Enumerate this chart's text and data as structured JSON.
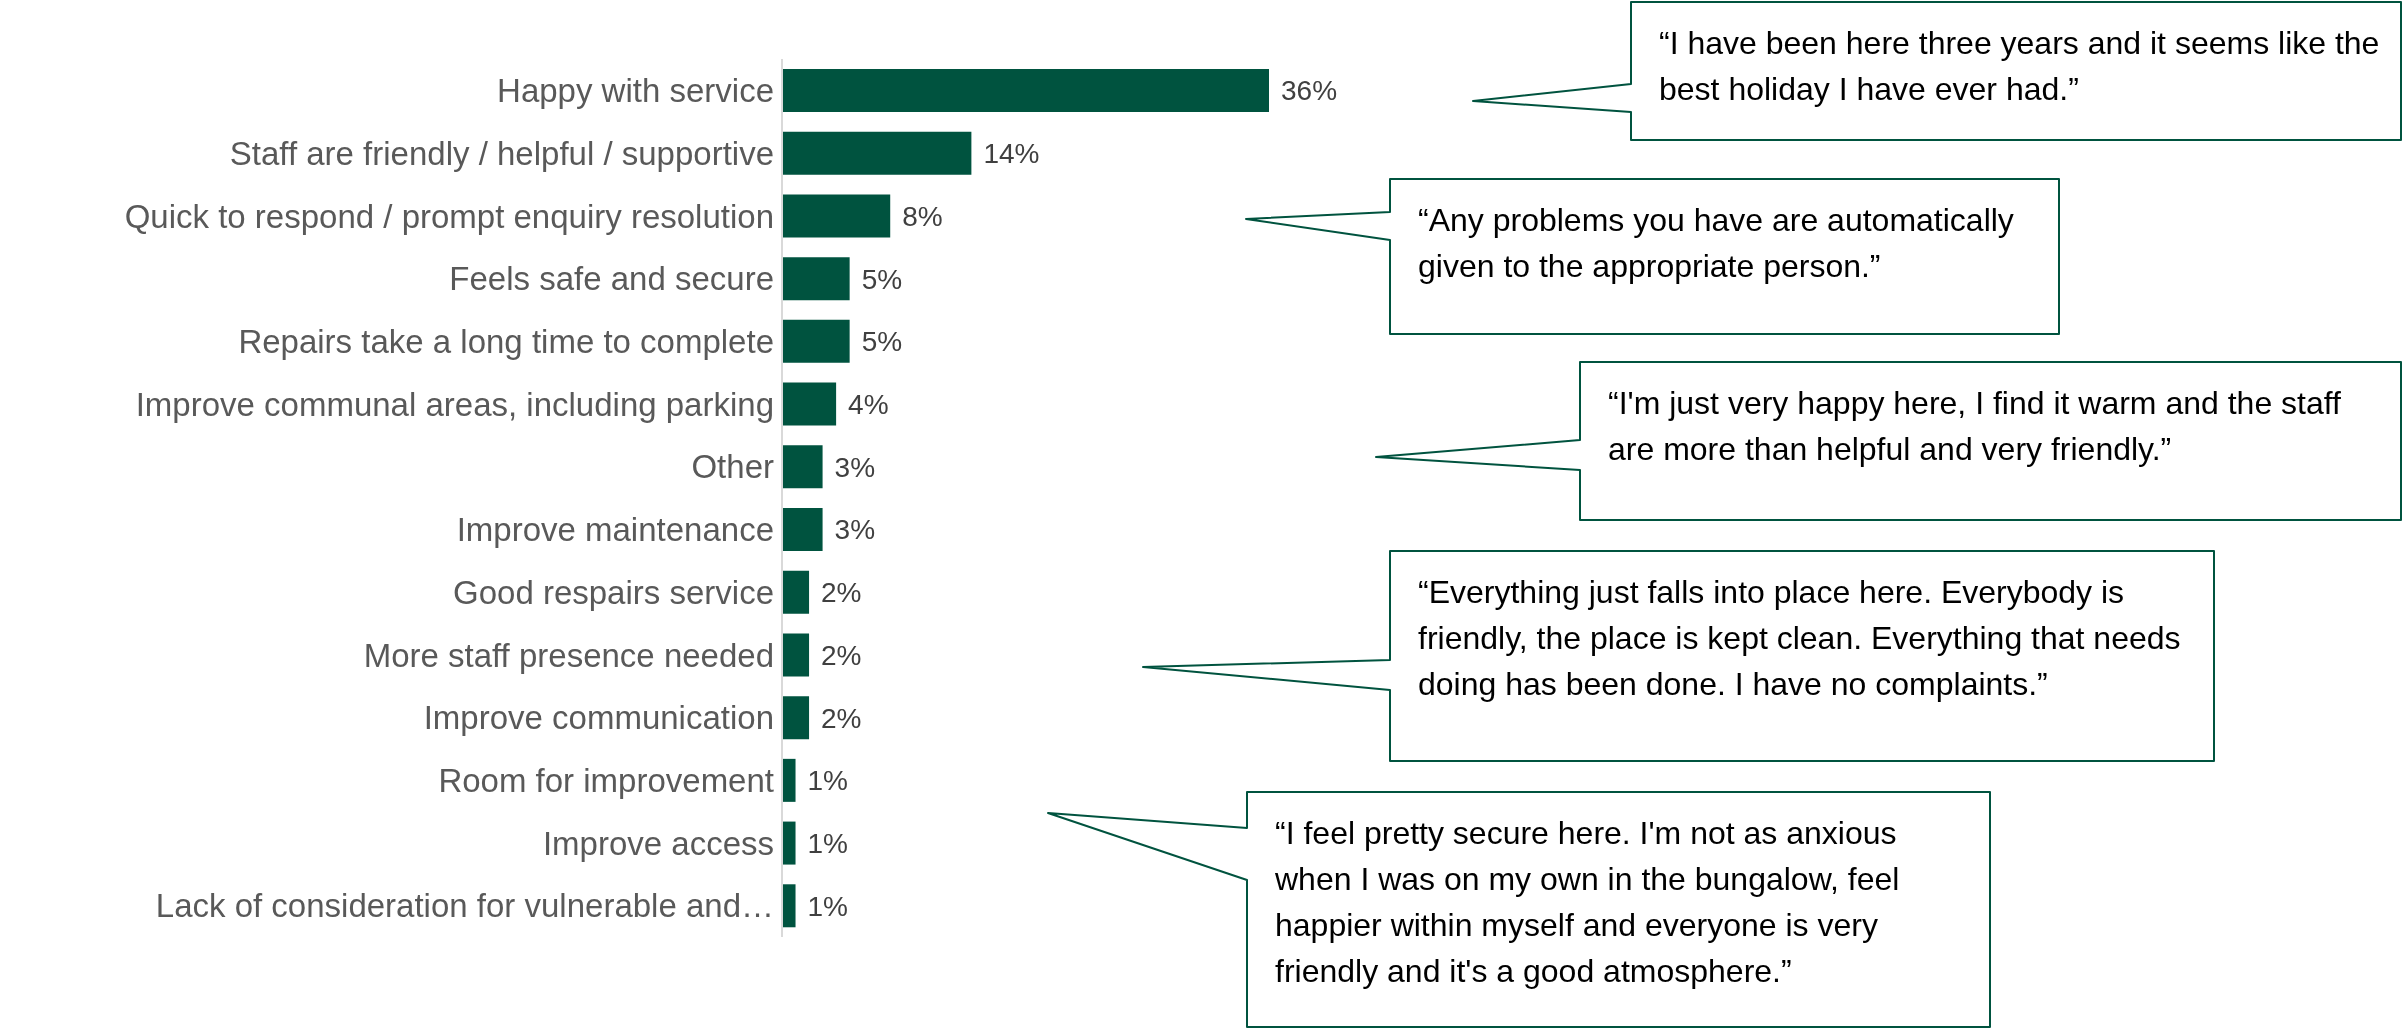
{
  "chart_data": {
    "type": "bar",
    "orientation": "horizontal",
    "tick_labels": "y",
    "categories": [
      "Happy with service",
      "Staff are friendly / helpful / supportive",
      "Quick to respond / prompt enquiry resolution",
      "Feels safe and secure",
      "Repairs take a long time to complete",
      "Improve communal areas, including parking",
      "Other",
      "Improve maintenance",
      "Good respairs service",
      "More staff presence needed",
      "Improve communication",
      "Room for improvement",
      "Improve access",
      "Lack of consideration for vulnerable and…"
    ],
    "values": [
      36,
      14,
      8,
      5,
      5,
      4,
      3,
      3,
      2,
      2,
      2,
      1,
      1,
      1
    ],
    "value_labels": [
      "36%",
      "14%",
      "8%",
      "5%",
      "5%",
      "4%",
      "3%",
      "3%",
      "2%",
      "2%",
      "2%",
      "1%",
      "1%",
      "1%"
    ],
    "color": "#00533f",
    "annotations": [
      "“I have been here three years and it seems like the best holiday I have ever had.”",
      "“Any problems you have are automatically given to the appropriate person.”",
      "“I'm just very happy here, I find it warm and the staff are more than helpful and very friendly.”",
      "“Everything just falls into place here. Everybody is friendly, the place is kept clean. Everything that needs doing has been done. I have no complaints.”",
      "“I feel pretty secure here.  I'm not as anxious when I was on my own in the bungalow, feel happier within myself and everyone is very friendly and it's a good atmosphere.”"
    ]
  }
}
